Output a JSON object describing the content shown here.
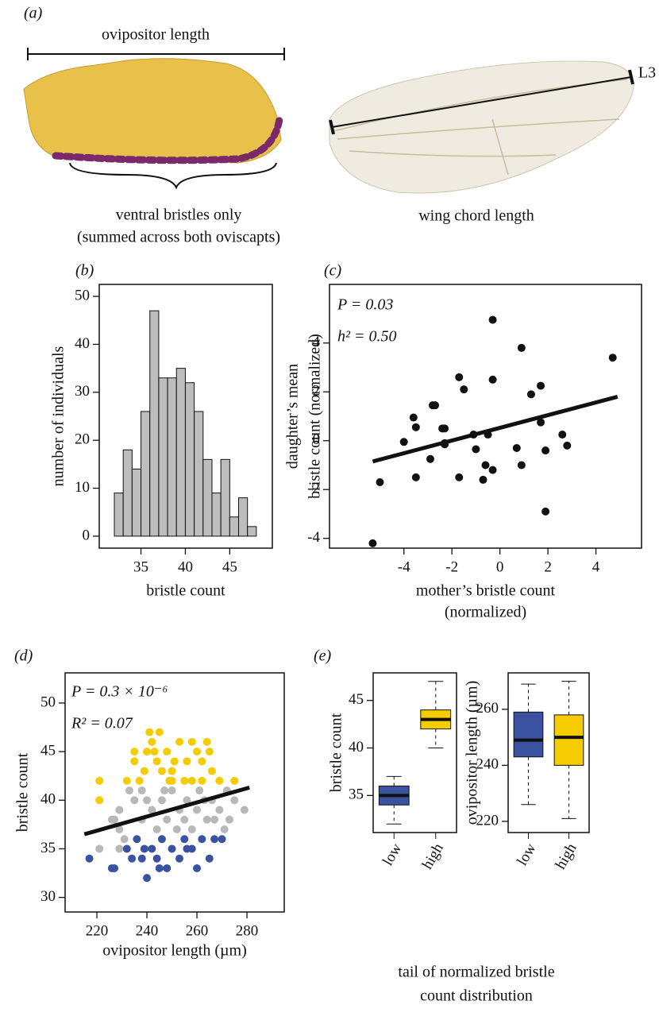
{
  "panel_a": {
    "label": "(a)",
    "ovipositor_label": "ovipositor length",
    "bristle_label": [
      "ventral bristles only",
      "(summed across both oviscapts)"
    ],
    "wing_label": "wing chord length",
    "vein_label": "L3"
  },
  "chart_data": [
    {
      "type": "histogram",
      "panel": "(b)",
      "bins": [
        32,
        33,
        34,
        35,
        36,
        37,
        38,
        39,
        40,
        41,
        42,
        43,
        44,
        45,
        46,
        47,
        48
      ],
      "values": [
        9,
        18,
        14,
        26,
        47,
        33,
        33,
        35,
        32,
        26,
        16,
        9,
        16,
        4,
        8,
        2
      ],
      "color": "#bdbdbd",
      "xlim": [
        30.3,
        49.8
      ],
      "xticks": [
        35,
        40,
        45
      ],
      "ylim": [
        -2.5,
        52.5
      ],
      "yticks": [
        0,
        10,
        20,
        30,
        40,
        50
      ],
      "x_label": [
        "bristle count"
      ],
      "y_label": [
        "number of individuals"
      ]
    },
    {
      "type": "scatter",
      "panel": "(c)",
      "color": "#111111",
      "x": [
        -5.3,
        -5,
        -4,
        -3.6,
        -3.5,
        -3.5,
        -2.8,
        -2.7,
        -2.9,
        -2.4,
        -2.3,
        -2.3,
        -2.3,
        -1.7,
        -1.5,
        -1.7,
        -1.1,
        -1,
        -0.6,
        -0.7,
        -0.5,
        -0.3,
        -0.3,
        -0.3,
        0.7,
        0.9,
        0.9,
        1.3,
        1.7,
        1.7,
        1.9,
        1.9,
        2.6,
        2.8,
        4.7
      ],
      "values": [
        -4.2,
        -1.7,
        -0.05,
        0.95,
        0.55,
        -1.5,
        1.45,
        1.45,
        -0.75,
        0.5,
        0.5,
        -0.1,
        -0.15,
        2.6,
        2.1,
        -1.5,
        0.25,
        -0.35,
        -1,
        -1.6,
        0.25,
        2.5,
        -1.2,
        4.95,
        -0.3,
        3.8,
        -1,
        1.9,
        2.25,
        0.75,
        -0.4,
        -2.9,
        0.25,
        -0.2,
        3.4
      ],
      "fit_line": {
        "x": [
          -5.3,
          4.9
        ],
        "y": [
          -0.85,
          1.8
        ]
      },
      "annotations": [
        "P =  0.03",
        "h² = 0.50"
      ],
      "xlim": [
        -7.1,
        5.9
      ],
      "xticks": [
        -4,
        -2,
        0,
        2,
        4
      ],
      "ylim": [
        -4.4,
        6.4
      ],
      "yticks": [
        -4,
        -2,
        0,
        2,
        4
      ],
      "x_label": [
        "mother’s bristle count",
        "(normalized)"
      ],
      "y_label": [
        "daughter’s mean",
        "bristle count (normalized)"
      ]
    },
    {
      "type": "scatter",
      "panel": "(d)",
      "series": [
        {
          "color": "#b8b8b8",
          "x": [
            221,
            227,
            229,
            233,
            229,
            235,
            238,
            242,
            246,
            248,
            250,
            253,
            256,
            258,
            261,
            264,
            266,
            269,
            272,
            275,
            279,
            231,
            229,
            244,
            252,
            260,
            267,
            271,
            238,
            226,
            240,
            255,
            263,
            247,
            273
          ],
          "values": [
            35,
            38,
            39,
            41,
            37,
            40,
            41,
            39,
            40,
            38,
            41,
            39,
            40,
            37,
            41,
            38,
            40,
            39,
            41,
            40,
            39,
            36,
            35,
            37,
            37,
            39,
            38,
            37,
            38,
            38,
            40,
            38,
            40,
            41,
            38
          ]
        },
        {
          "color": "#f5cc00",
          "x": [
            221,
            221,
            235,
            235,
            239,
            241,
            242,
            243,
            244,
            245,
            246,
            248,
            249,
            251,
            253,
            255,
            258,
            260,
            262,
            264,
            266,
            269,
            262,
            237,
            232,
            250,
            256,
            258,
            275,
            240,
            250,
            265
          ],
          "values": [
            42,
            40,
            45,
            44,
            43,
            47,
            46,
            45,
            44,
            47,
            43,
            45,
            42,
            44,
            46,
            42,
            46,
            45,
            44,
            46,
            43,
            42,
            42,
            42,
            42,
            43,
            44,
            42,
            42,
            45,
            42,
            45
          ]
        },
        {
          "color": "#3a52a0",
          "x": [
            217,
            226,
            227,
            232,
            234,
            236,
            238,
            240,
            242,
            244,
            246,
            248,
            250,
            253,
            255,
            258,
            260,
            262,
            265,
            267,
            270,
            245,
            256,
            239
          ],
          "values": [
            34,
            33,
            33,
            35,
            34,
            36,
            34,
            32,
            35,
            34,
            36,
            33,
            35,
            34,
            36,
            35,
            33,
            36,
            34,
            36,
            36,
            33,
            35,
            35
          ]
        }
      ],
      "fit_line": {
        "x": [
          215,
          281
        ],
        "y": [
          36.5,
          41.3
        ]
      },
      "annotations": [
        "P =  0.3 × 10⁻⁶",
        "R² =  0.07"
      ],
      "xlim": [
        207.3,
        294.9
      ],
      "xticks": [
        220,
        240,
        260,
        280
      ],
      "ylim": [
        28.5,
        53.1
      ],
      "yticks": [
        30,
        35,
        40,
        45,
        50
      ],
      "x_label": [
        "ovipositor length (µm)"
      ],
      "y_label": [
        "bristle count"
      ]
    },
    {
      "type": "box",
      "panel": "(e)",
      "categories": [
        "low",
        "high"
      ],
      "colors": [
        "#3a52a0",
        "#f5cc00"
      ],
      "boxes": [
        {
          "min": 32,
          "q1": 34,
          "median": 35,
          "q3": 36,
          "max": 37
        },
        {
          "min": 40,
          "q1": 42,
          "median": 43,
          "q3": 44,
          "max": 47
        }
      ],
      "ylim": [
        31.1,
        47.9
      ],
      "yticks": [
        35,
        40,
        45
      ],
      "y_label": [
        "bristle count"
      ],
      "x_label": [
        "tail of normalized bristle",
        "count distribution"
      ]
    },
    {
      "type": "box",
      "categories": [
        "low",
        "high"
      ],
      "colors": [
        "#3a52a0",
        "#f5cc00"
      ],
      "boxes": [
        {
          "min": 226,
          "q1": 243,
          "median": 249,
          "q3": 259,
          "max": 269
        },
        {
          "min": 221,
          "q1": 240,
          "median": 250,
          "q3": 258,
          "max": 270
        }
      ],
      "ylim": [
        216,
        273
      ],
      "yticks": [
        220,
        240,
        260
      ],
      "y_label": [
        "ovipositor length (µm)"
      ]
    }
  ]
}
